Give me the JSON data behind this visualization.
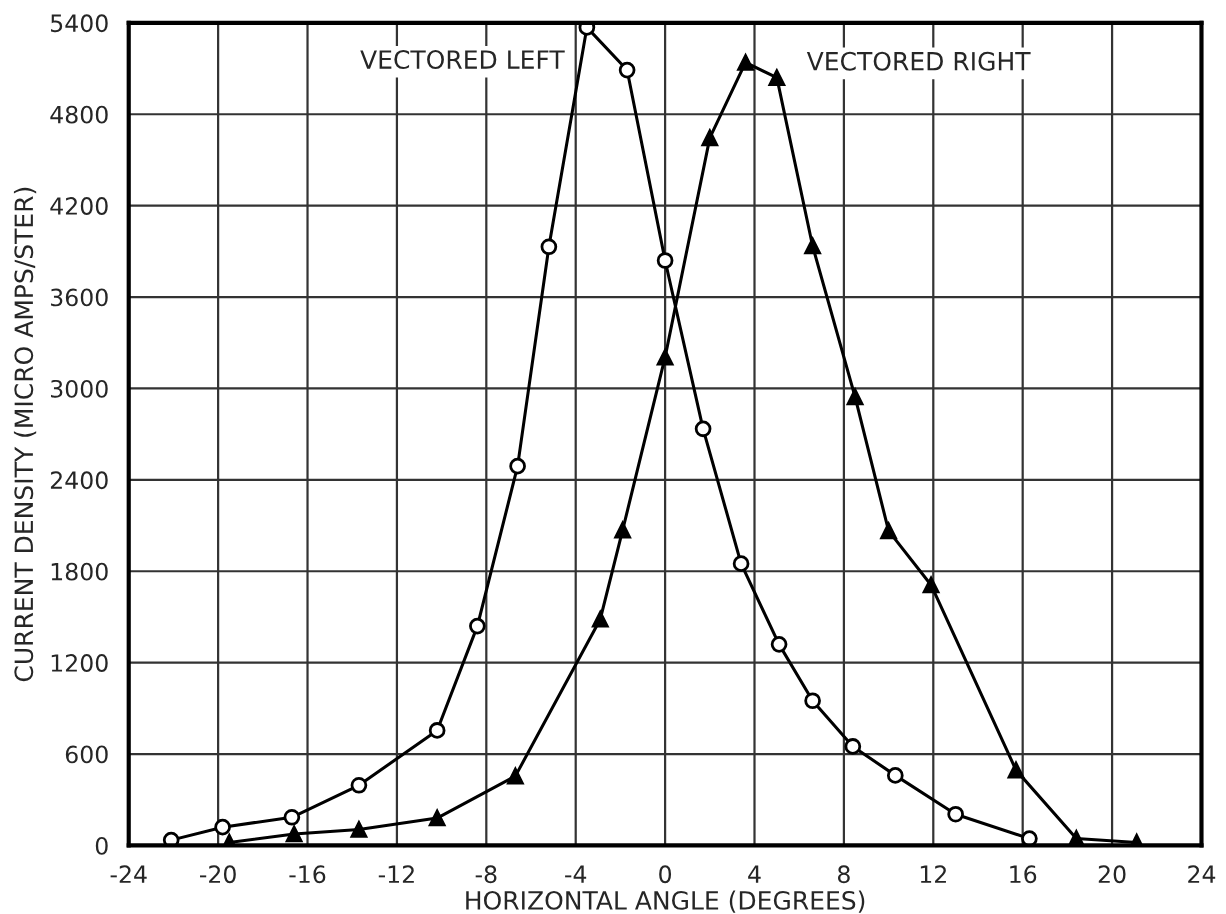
{
  "chart_data": {
    "type": "line",
    "xlabel": "HORIZONTAL ANGLE (DEGREES)",
    "ylabel": "CURRENT DENSITY (MICRO AMPS/STER)",
    "xlim": [
      -24,
      24
    ],
    "xticks": [
      -24,
      -20,
      -16,
      -12,
      -8,
      -4,
      0,
      4,
      8,
      12,
      16,
      20,
      24
    ],
    "ylim": [
      0,
      5400
    ],
    "yticks": [
      0,
      600,
      1200,
      1800,
      2400,
      3000,
      3600,
      4200,
      4800,
      5400
    ],
    "grid": true,
    "legend": false,
    "line_style": "solid",
    "series": [
      {
        "name": "VECTORED LEFT",
        "color": "#000000",
        "marker": "circle",
        "x": [
          -22.1,
          -19.8,
          -16.7,
          -13.7,
          -10.2,
          -8.4,
          -6.6,
          -5.2,
          -3.5,
          -1.7,
          0.0,
          1.7,
          3.4,
          5.1,
          6.6,
          8.4,
          10.3,
          13.0,
          16.3
        ],
        "values": [
          35,
          120,
          185,
          395,
          755,
          1440,
          2490,
          3930,
          5370,
          5090,
          3840,
          2735,
          1850,
          1320,
          950,
          650,
          460,
          205,
          45
        ]
      },
      {
        "name": "VECTORED RIGHT",
        "color": "#000000",
        "marker": "triangle",
        "x": [
          -19.5,
          -16.6,
          -13.7,
          -10.2,
          -6.7,
          -2.9,
          -1.9,
          0.0,
          2.0,
          3.6,
          5.0,
          6.6,
          8.5,
          10.0,
          11.9,
          15.7,
          18.4,
          21.1
        ],
        "values": [
          20,
          75,
          105,
          180,
          455,
          1485,
          2070,
          3205,
          4645,
          5140,
          5040,
          3935,
          2945,
          2065,
          1710,
          495,
          45,
          20
        ]
      }
    ]
  }
}
